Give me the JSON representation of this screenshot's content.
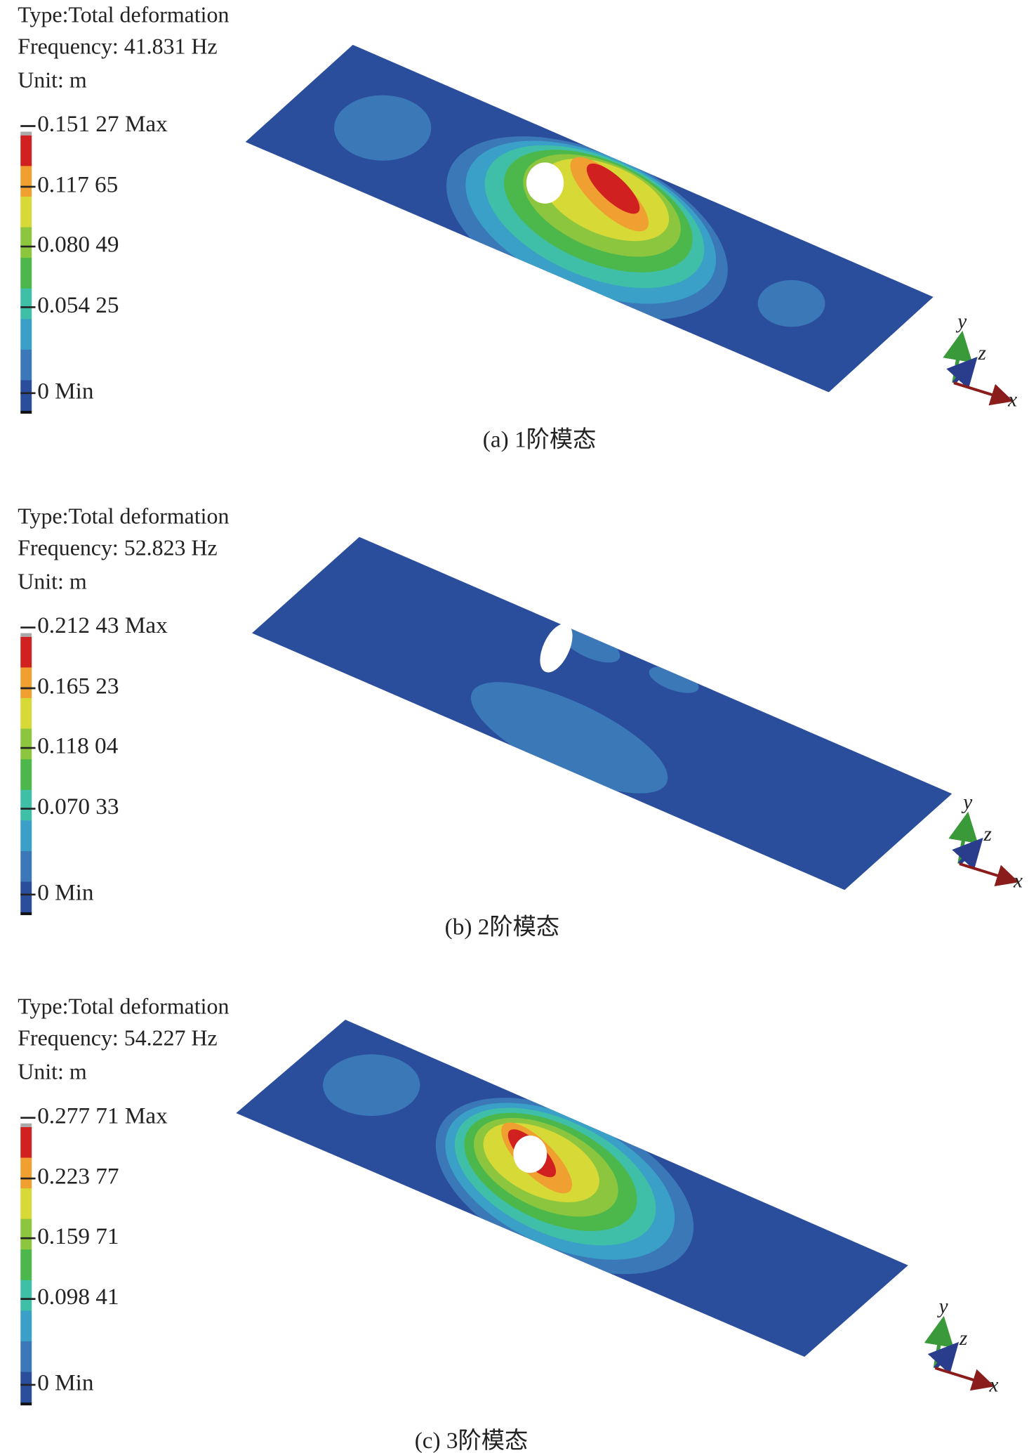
{
  "panels": [
    {
      "type_label": "Type:Total deformation",
      "frequency": "Frequency: 41.831 Hz",
      "unit": "Unit: m",
      "legend": [
        "0.151 27 Max",
        "0.117 65",
        "0.080 49",
        "0.054 25",
        "0 Min"
      ],
      "axes": [
        "y",
        "z",
        "x"
      ],
      "caption": "(a) 1阶模态"
    },
    {
      "type_label": "Type:Total deformation",
      "frequency": "Frequency: 52.823 Hz",
      "unit": "Unit: m",
      "legend": [
        "0.212 43 Max",
        "0.165 23",
        "0.118 04",
        "0.070 33",
        "0 Min"
      ],
      "axes": [
        "y",
        "z",
        "x"
      ],
      "caption": "(b) 2阶模态"
    },
    {
      "type_label": "Type:Total deformation",
      "frequency": "Frequency: 54.227 Hz",
      "unit": "Unit: m",
      "legend": [
        "0.277 71 Max",
        "0.223 77",
        "0.159 71",
        "0.098 41",
        "0 Min"
      ],
      "axes": [
        "y",
        "z",
        "x"
      ],
      "caption": "(c) 3阶模态"
    }
  ]
}
